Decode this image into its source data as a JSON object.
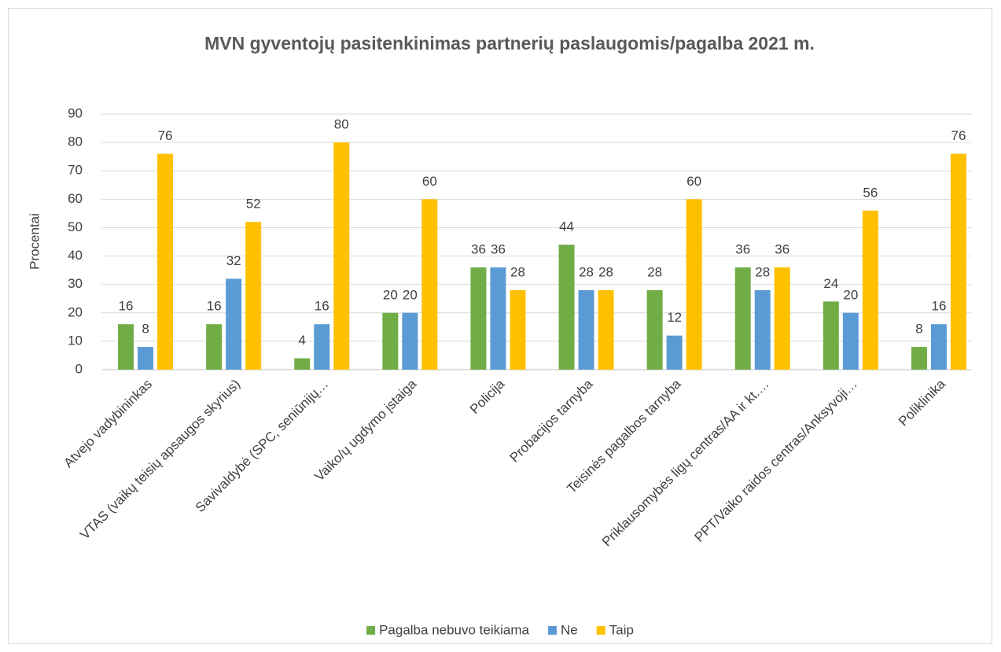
{
  "chart_data": {
    "type": "bar",
    "title": "MVN gyventojų pasitenkinimas partnerių paslaugomis/pagalba 2021 m.",
    "ylabel": "Procentai",
    "categories": [
      "Atvejo vadybininkas",
      "VTAS (vaikų teisių apsaugos skyrius)",
      "Savivaldybė (SPC, seniūnijų…",
      "Vaiko/ų ugdymo įstaiga",
      "Policija",
      "Probacijos tarnyba",
      "Teisinės pagalbos tarnyba",
      "Priklausomybės ligų centras/AA ir kt.…",
      "PPT/Vaiko raidos centras/Anksyvoji…",
      "Poliklinika"
    ],
    "series": [
      {
        "name": "Pagalba nebuvo teikiama",
        "color": "#70ad47",
        "values": [
          16,
          16,
          4,
          20,
          36,
          44,
          28,
          36,
          24,
          8
        ]
      },
      {
        "name": "Ne",
        "color": "#5b9bd5",
        "values": [
          8,
          32,
          16,
          20,
          36,
          28,
          12,
          28,
          20,
          16
        ]
      },
      {
        "name": "Taip",
        "color": "#ffc000",
        "values": [
          76,
          52,
          80,
          60,
          28,
          28,
          60,
          36,
          56,
          76
        ]
      }
    ],
    "ylim": [
      0,
      90
    ],
    "yticks": [
      0,
      10,
      20,
      30,
      40,
      50,
      60,
      70,
      80,
      90
    ],
    "grid": true,
    "legend": "bottom"
  }
}
